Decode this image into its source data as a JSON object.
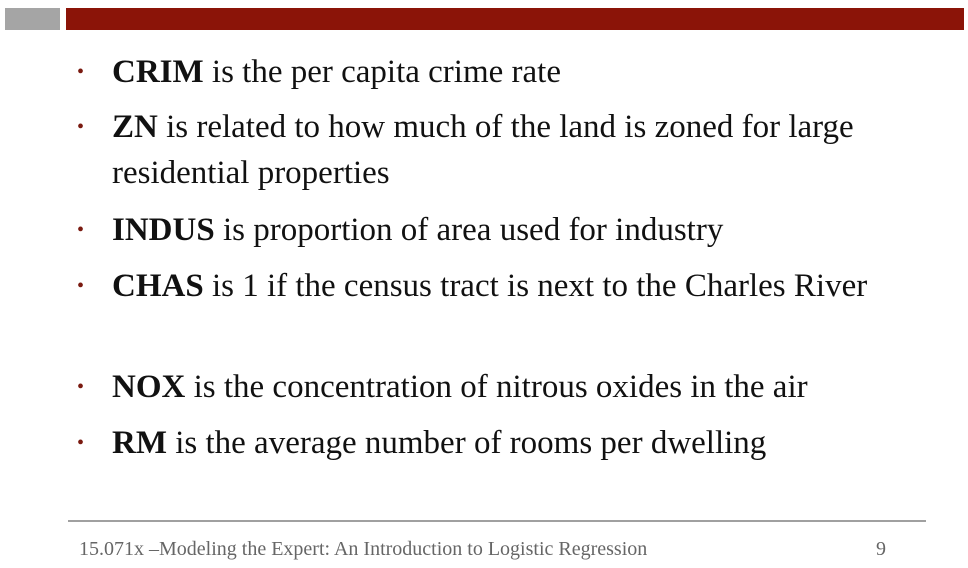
{
  "colors": {
    "header_gray": "#a5a5a5",
    "header_red": "#8b1408",
    "bullet_color": "#7a1a10",
    "text": "#111111",
    "footer_text": "#666666"
  },
  "bullet_symbol": "•",
  "bullets": [
    {
      "term": "CRIM",
      "text": " is the per capita crime rate"
    },
    {
      "term": "ZN",
      "text": " is related to how much of the land is zoned for large residential properties"
    },
    {
      "term": "INDUS",
      "text": " is proportion of area used for industry"
    },
    {
      "term": "CHAS",
      "text": " is 1 if the census tract is next to the Charles River"
    },
    {
      "term": "NOX",
      "text": " is the concentration of nitrous oxides in the air"
    },
    {
      "term": "RM",
      "text": " is the average number of rooms per dwelling"
    }
  ],
  "footer": {
    "course_title": "15.071x –Modeling the Expert: An Introduction to Logistic Regression",
    "page_number": "9"
  }
}
